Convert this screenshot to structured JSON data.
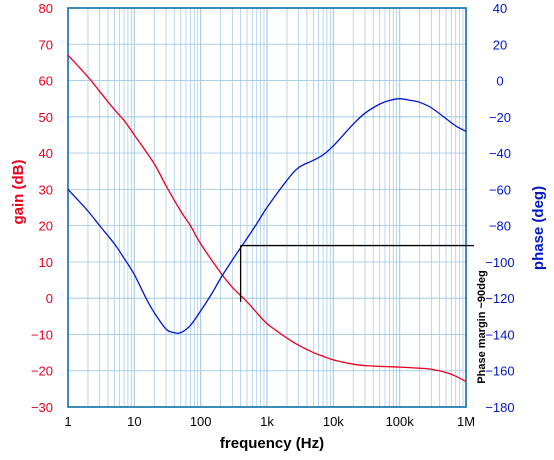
{
  "chart_data": {
    "type": "line",
    "title": "",
    "xlabel": "frequency  (Hz)",
    "ylabel_left": "gain  (dB)",
    "ylabel_right": "phase  (deg)",
    "x_scale": "log",
    "xlim": [
      1,
      1000000
    ],
    "ylim_left": [
      -30,
      80
    ],
    "ylim_right": [
      -180,
      40
    ],
    "x_ticks": [
      1,
      10,
      100,
      1000,
      10000,
      100000,
      1000000
    ],
    "x_tick_labels": [
      "1",
      "10",
      "100",
      "1k",
      "10k",
      "100k",
      "1M"
    ],
    "y_left_ticks": [
      80,
      70,
      60,
      50,
      40,
      30,
      20,
      10,
      0,
      -10,
      -20,
      -30
    ],
    "y_right_ticks": [
      40,
      20,
      0,
      -20,
      -40,
      -60,
      -80,
      -100,
      -120,
      -140,
      -160,
      -180
    ],
    "grid": true,
    "colors": {
      "gain": "#e8001c",
      "phase": "#0018c8",
      "grid": "#a8cce8",
      "frame": "#0c6fa8",
      "annotation": "#000000",
      "left_axis": "#e8001c",
      "right_axis": "#0018c8"
    },
    "series": [
      {
        "axis": "left",
        "x": [
          1,
          2,
          3,
          5,
          7,
          10,
          20,
          30,
          50,
          70,
          100,
          200,
          300,
          500,
          700,
          1000,
          2000,
          3000,
          5000,
          7000,
          10000,
          20000,
          30000,
          50000,
          70000,
          100000,
          200000,
          300000,
          500000,
          700000,
          1000000
        ],
        "values": [
          67,
          61,
          57,
          52,
          49,
          45,
          37,
          31,
          24,
          20,
          15,
          7,
          3,
          -1,
          -4,
          -7,
          -11,
          -13,
          -15,
          -16,
          -17,
          -18.2,
          -18.6,
          -18.8,
          -18.9,
          -19,
          -19.3,
          -19.6,
          -20.5,
          -21.5,
          -23
        ]
      },
      {
        "axis": "right",
        "x": [
          1,
          2,
          3,
          5,
          7,
          10,
          15,
          20,
          30,
          40,
          50,
          70,
          100,
          150,
          200,
          300,
          500,
          700,
          1000,
          2000,
          3000,
          5000,
          7000,
          10000,
          20000,
          30000,
          50000,
          70000,
          100000,
          150000,
          200000,
          300000,
          500000,
          700000,
          1000000
        ],
        "values": [
          -60,
          -72,
          -80,
          -90,
          -98,
          -107,
          -120,
          -128,
          -137,
          -139,
          -139,
          -135,
          -127,
          -117,
          -109,
          -99,
          -87,
          -79,
          -70,
          -55,
          -48,
          -44,
          -41,
          -36,
          -24,
          -18,
          -13,
          -11,
          -10,
          -11,
          -12,
          -15,
          -21,
          -25,
          -28
        ]
      }
    ],
    "annotations": [
      {
        "text": "Phase margin ~90deg",
        "x": 400,
        "marker_left_value": -1,
        "marker_right_value": -91
      }
    ]
  }
}
